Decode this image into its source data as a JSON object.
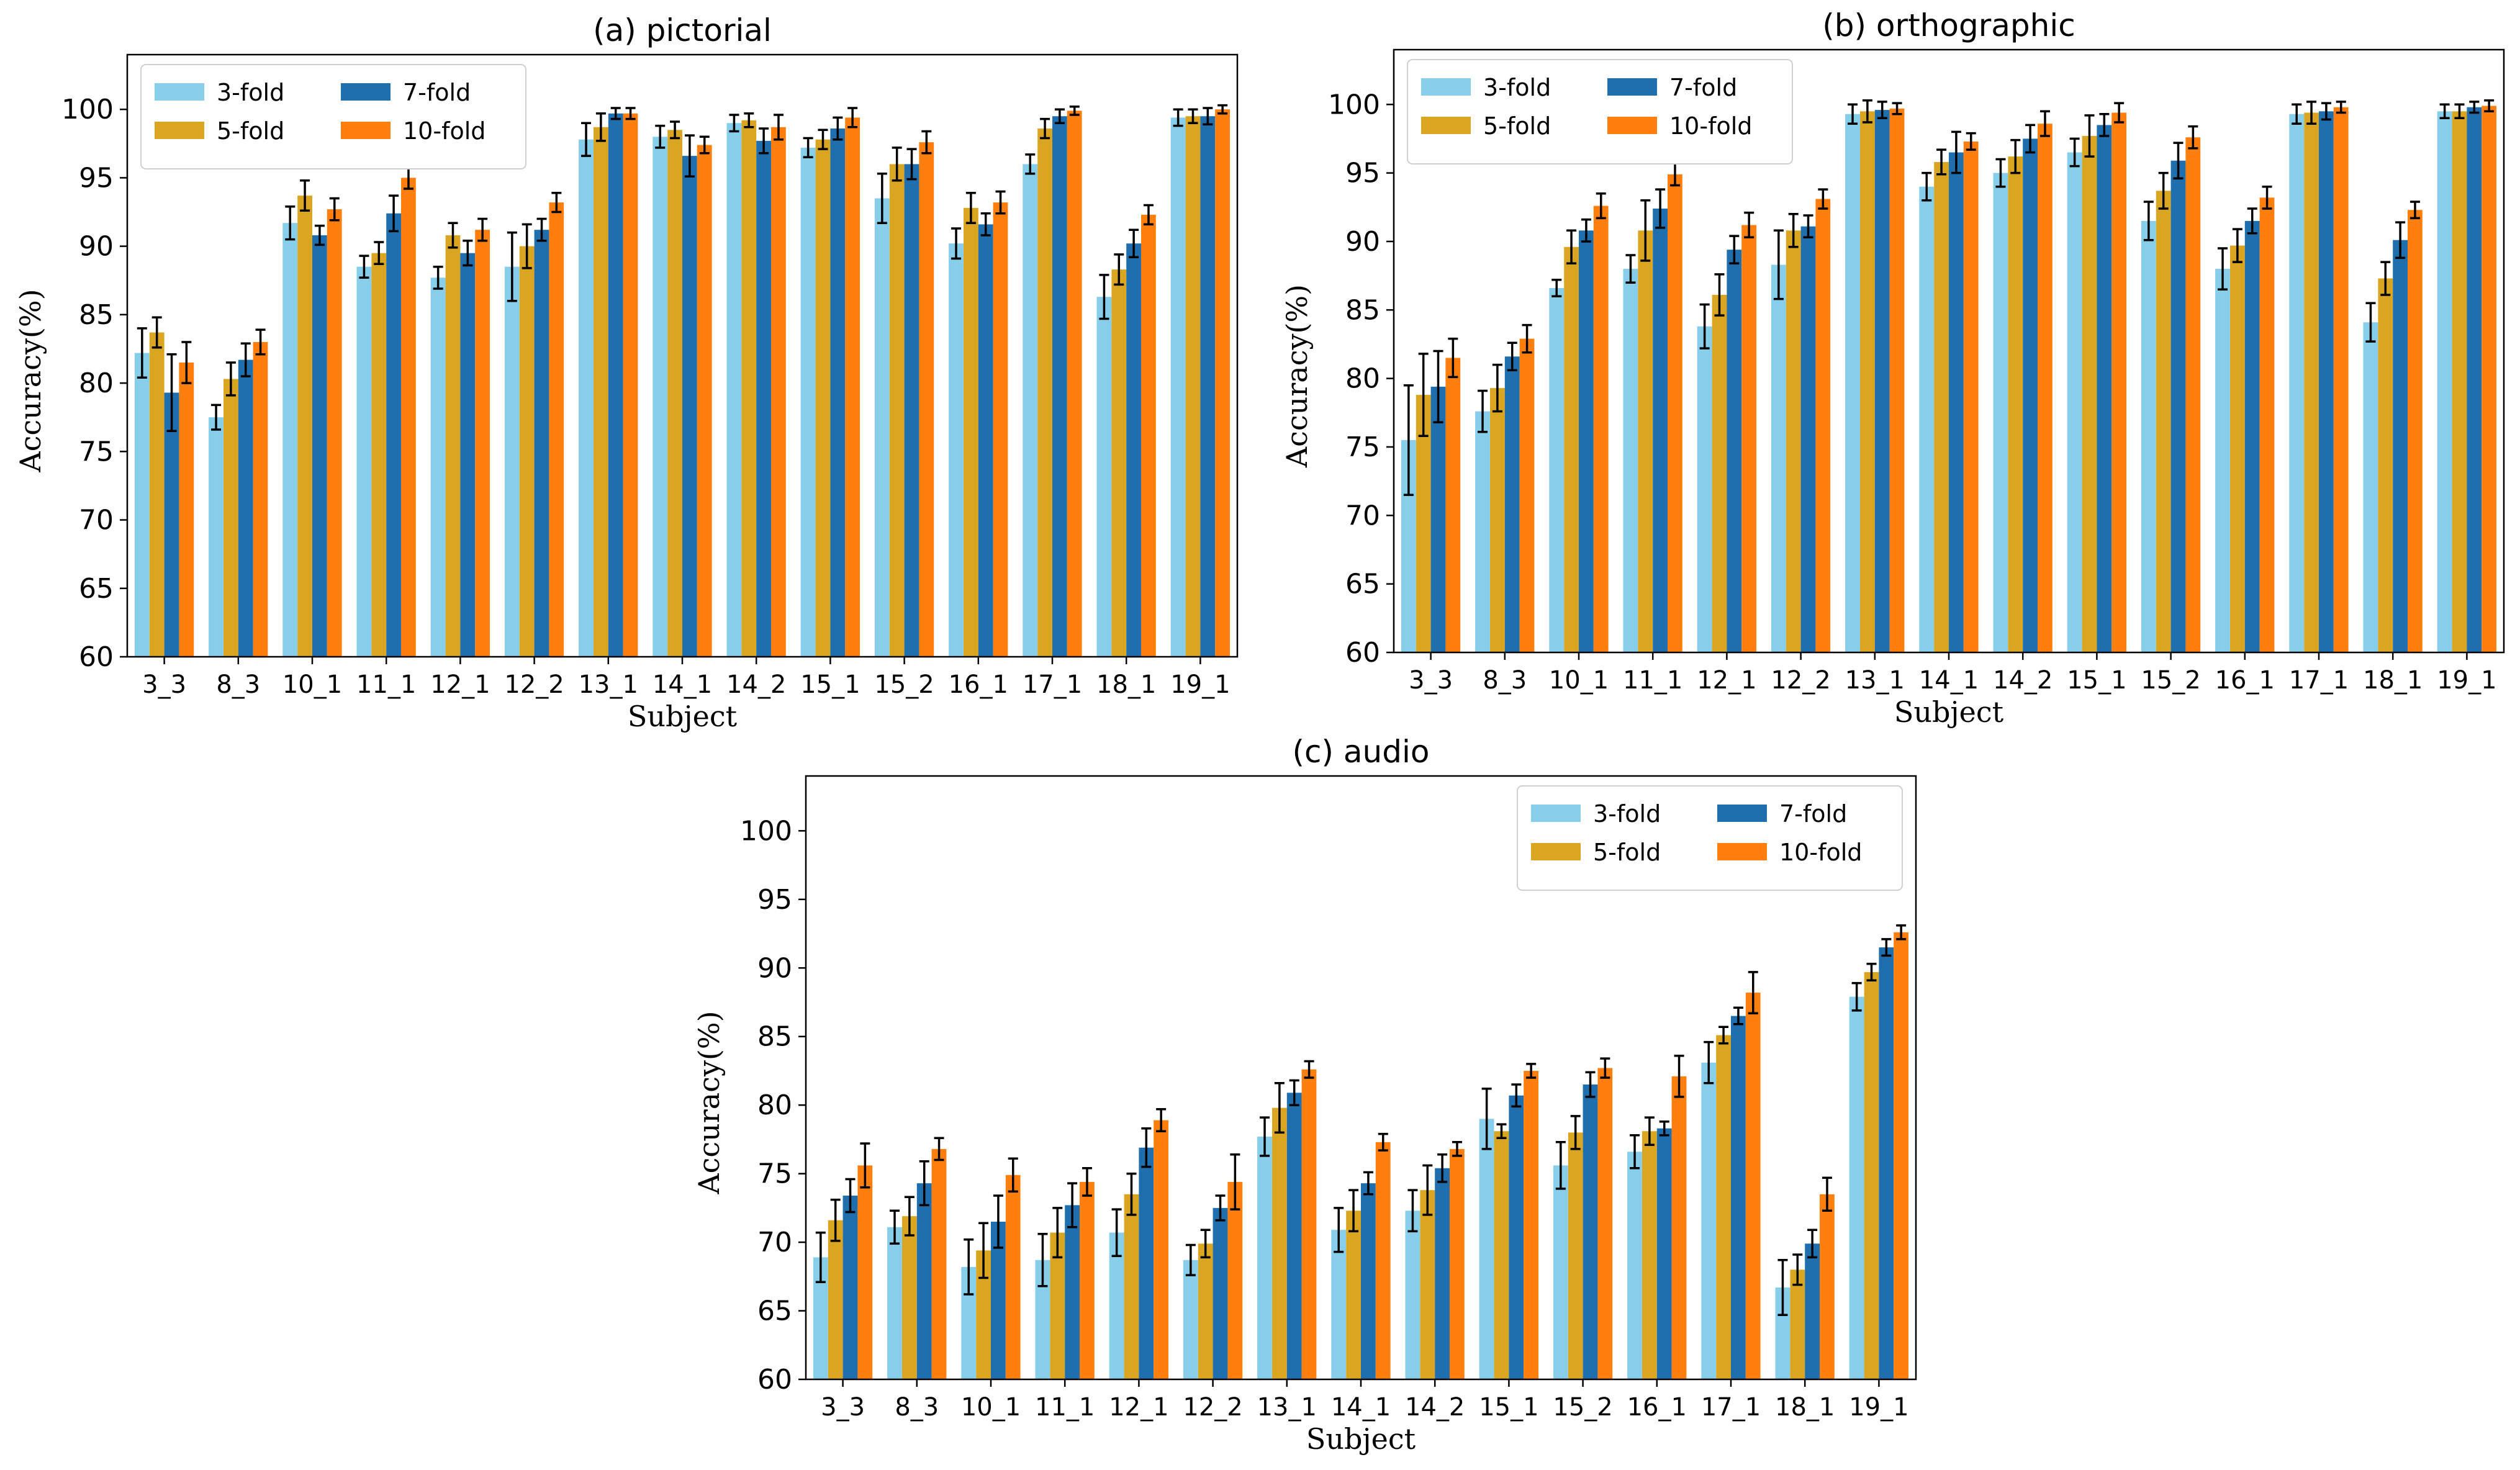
{
  "chart_data": [
    {
      "type": "bar",
      "title": "(a) pictorial",
      "xlabel": "Subject",
      "ylabel": "Accuracy(%)",
      "ylim": [
        60,
        104
      ],
      "yticks": [
        60,
        65,
        70,
        75,
        80,
        85,
        90,
        95,
        100
      ],
      "legend_position": "top-left",
      "categories": [
        "3_3",
        "8_3",
        "10_1",
        "11_1",
        "12_1",
        "12_2",
        "13_1",
        "14_1",
        "14_2",
        "15_1",
        "15_2",
        "16_1",
        "17_1",
        "18_1",
        "19_1"
      ],
      "series": [
        {
          "name": "3-fold",
          "color": "#87CEEB",
          "values": [
            82.2,
            77.5,
            91.7,
            88.5,
            87.7,
            88.5,
            97.8,
            98.0,
            99.0,
            97.2,
            93.5,
            90.2,
            96.0,
            86.3,
            99.4
          ],
          "errors": [
            1.8,
            0.9,
            1.2,
            0.8,
            0.8,
            2.5,
            1.2,
            0.8,
            0.6,
            0.7,
            1.8,
            1.1,
            0.7,
            1.6,
            0.6
          ]
        },
        {
          "name": "5-fold",
          "color": "#DAA520",
          "values": [
            83.7,
            80.3,
            93.7,
            89.5,
            90.8,
            90.0,
            98.7,
            98.5,
            99.2,
            97.8,
            96.0,
            92.8,
            98.6,
            88.3,
            99.5
          ],
          "errors": [
            1.1,
            1.2,
            1.1,
            0.8,
            0.9,
            1.6,
            1.0,
            0.6,
            0.5,
            0.7,
            1.2,
            1.1,
            0.7,
            1.1,
            0.5
          ]
        },
        {
          "name": "7-fold",
          "color": "#1F6FAE",
          "values": [
            79.3,
            81.7,
            90.8,
            92.4,
            89.5,
            91.2,
            99.7,
            96.6,
            97.7,
            98.6,
            96.0,
            91.6,
            99.5,
            90.2,
            99.5
          ],
          "errors": [
            2.8,
            1.2,
            0.7,
            1.3,
            0.9,
            0.8,
            0.4,
            1.5,
            0.9,
            0.8,
            1.1,
            0.8,
            0.5,
            1.0,
            0.6
          ]
        },
        {
          "name": "10-fold",
          "color": "#FF7F0E",
          "values": [
            81.5,
            83.0,
            92.7,
            95.0,
            91.2,
            93.2,
            99.7,
            97.4,
            98.7,
            99.4,
            97.6,
            93.2,
            99.9,
            92.3,
            100.0
          ],
          "errors": [
            1.5,
            0.9,
            0.8,
            0.8,
            0.8,
            0.7,
            0.4,
            0.6,
            0.9,
            0.7,
            0.8,
            0.8,
            0.3,
            0.7,
            0.3
          ]
        }
      ]
    },
    {
      "type": "bar",
      "title": "(b) orthographic",
      "xlabel": "Subject",
      "ylabel": "Accuracy(%)",
      "ylim": [
        60,
        104
      ],
      "yticks": [
        60,
        65,
        70,
        75,
        80,
        85,
        90,
        95,
        100
      ],
      "legend_position": "top-left",
      "categories": [
        "3_3",
        "8_3",
        "10_1",
        "11_1",
        "12_1",
        "12_2",
        "13_1",
        "14_1",
        "14_2",
        "15_1",
        "15_2",
        "16_1",
        "17_1",
        "18_1",
        "19_1"
      ],
      "series": [
        {
          "name": "3-fold",
          "color": "#87CEEB",
          "values": [
            75.5,
            77.6,
            86.6,
            88.0,
            83.8,
            88.3,
            99.3,
            94.0,
            95.0,
            96.5,
            91.5,
            88.0,
            99.3,
            84.1,
            99.5
          ],
          "errors": [
            4.0,
            1.5,
            0.6,
            1.0,
            1.6,
            2.5,
            0.7,
            1.0,
            1.0,
            1.0,
            1.4,
            1.5,
            0.7,
            1.4,
            0.5
          ]
        },
        {
          "name": "5-fold",
          "color": "#DAA520",
          "values": [
            78.8,
            79.3,
            89.6,
            90.8,
            86.1,
            90.8,
            99.5,
            95.8,
            96.2,
            97.7,
            93.7,
            89.7,
            99.4,
            87.3,
            99.5
          ],
          "errors": [
            3.0,
            1.7,
            1.2,
            2.2,
            1.5,
            1.2,
            0.8,
            0.9,
            1.2,
            1.5,
            1.3,
            1.2,
            0.8,
            1.2,
            0.5
          ]
        },
        {
          "name": "7-fold",
          "color": "#1F6FAE",
          "values": [
            79.4,
            81.6,
            90.8,
            92.4,
            89.4,
            91.1,
            99.6,
            96.5,
            97.5,
            98.5,
            95.9,
            91.5,
            99.5,
            90.1,
            99.8
          ],
          "errors": [
            2.6,
            1.0,
            0.8,
            1.4,
            1.0,
            0.8,
            0.6,
            1.5,
            1.0,
            0.8,
            1.3,
            0.9,
            0.6,
            1.3,
            0.4
          ]
        },
        {
          "name": "10-fold",
          "color": "#FF7F0E",
          "values": [
            81.5,
            82.9,
            92.6,
            94.9,
            91.2,
            93.1,
            99.7,
            97.3,
            98.6,
            99.4,
            97.6,
            93.2,
            99.8,
            92.3,
            99.9
          ],
          "errors": [
            1.4,
            1.0,
            0.9,
            0.8,
            0.9,
            0.7,
            0.4,
            0.6,
            0.9,
            0.7,
            0.8,
            0.8,
            0.4,
            0.6,
            0.4
          ]
        }
      ]
    },
    {
      "type": "bar",
      "title": "(c) audio",
      "xlabel": "Subject",
      "ylabel": "Accuracy(%)",
      "ylim": [
        60,
        104
      ],
      "yticks": [
        60,
        65,
        70,
        75,
        80,
        85,
        90,
        95,
        100
      ],
      "legend_position": "top-right",
      "categories": [
        "3_3",
        "8_3",
        "10_1",
        "11_1",
        "12_1",
        "12_2",
        "13_1",
        "14_1",
        "14_2",
        "15_1",
        "15_2",
        "16_1",
        "17_1",
        "18_1",
        "19_1"
      ],
      "series": [
        {
          "name": "3-fold",
          "color": "#87CEEB",
          "values": [
            68.9,
            71.1,
            68.2,
            68.7,
            70.7,
            68.7,
            77.7,
            70.9,
            72.3,
            79.0,
            75.6,
            76.6,
            83.1,
            66.7,
            87.9
          ],
          "errors": [
            1.8,
            1.2,
            2.0,
            1.9,
            1.7,
            1.1,
            1.4,
            1.6,
            1.5,
            2.2,
            1.7,
            1.2,
            1.5,
            2.0,
            1.0
          ]
        },
        {
          "name": "5-fold",
          "color": "#DAA520",
          "values": [
            71.6,
            71.9,
            69.4,
            70.7,
            73.5,
            69.9,
            79.8,
            72.3,
            73.8,
            78.1,
            78.0,
            78.1,
            85.1,
            68.0,
            89.7
          ],
          "errors": [
            1.5,
            1.4,
            2.0,
            1.8,
            1.5,
            1.0,
            1.8,
            1.5,
            1.8,
            0.5,
            1.2,
            1.0,
            0.6,
            1.1,
            0.6
          ]
        },
        {
          "name": "7-fold",
          "color": "#1F6FAE",
          "values": [
            73.4,
            74.3,
            71.5,
            72.7,
            76.9,
            72.5,
            80.9,
            74.3,
            75.4,
            80.7,
            81.5,
            78.3,
            86.5,
            69.9,
            91.5
          ],
          "errors": [
            1.2,
            1.6,
            1.9,
            1.6,
            1.4,
            0.9,
            0.9,
            0.8,
            1.0,
            0.8,
            0.9,
            0.5,
            0.6,
            1.0,
            0.6
          ]
        },
        {
          "name": "10-fold",
          "color": "#FF7F0E",
          "values": [
            75.6,
            76.8,
            74.9,
            74.4,
            78.9,
            74.4,
            82.6,
            77.3,
            76.8,
            82.5,
            82.7,
            82.1,
            88.2,
            73.5,
            92.6
          ],
          "errors": [
            1.6,
            0.8,
            1.2,
            1.0,
            0.8,
            2.0,
            0.6,
            0.6,
            0.5,
            0.5,
            0.7,
            1.5,
            1.5,
            1.2,
            0.5
          ]
        }
      ]
    }
  ]
}
